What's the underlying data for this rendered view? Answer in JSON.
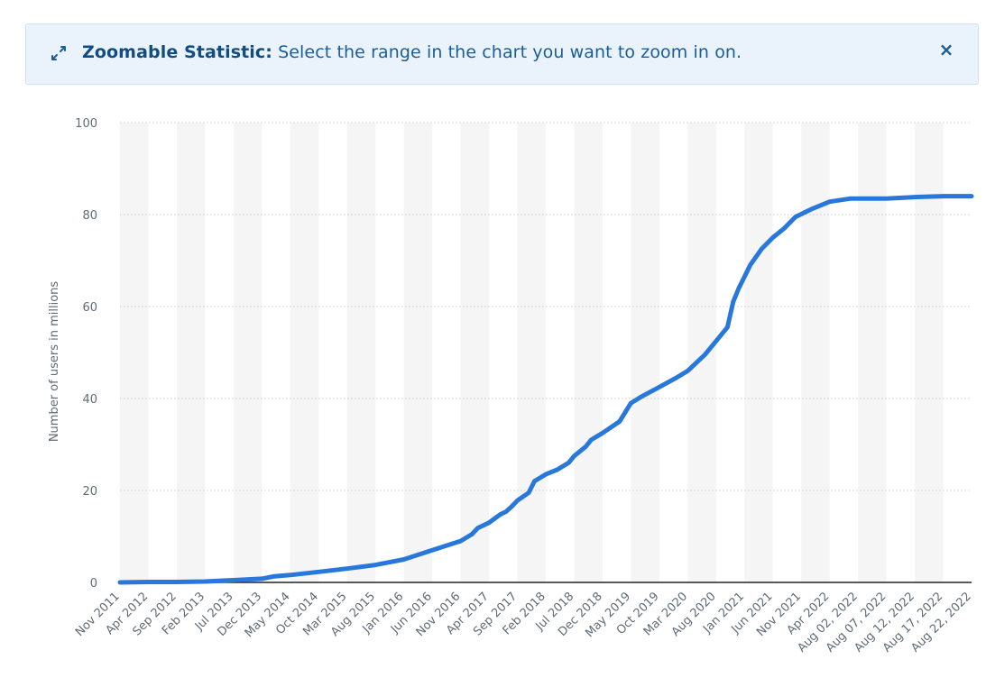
{
  "banner": {
    "title": "Zoomable Statistic:",
    "text": " Select the range in the chart you want to zoom in on.",
    "close_label": "×",
    "expand_icon": "expand-arrows-icon",
    "close_icon": "close-icon"
  },
  "colors": {
    "line": "#2878dc",
    "band": "#f5f5f5",
    "grid": "#c8c8c8",
    "axis": "#222222",
    "banner_bg": "#eaf3fb",
    "banner_text": "#1a5d99"
  },
  "chart_data": {
    "type": "line",
    "title": "",
    "xlabel": "",
    "ylabel": "Number of users in millions",
    "ylim": [
      0,
      100
    ],
    "yticks": [
      0,
      20,
      40,
      60,
      80,
      100
    ],
    "grid": true,
    "legend": "none",
    "x_labels": [
      "Nov 2011",
      "Apr 2012",
      "Sep 2012",
      "Feb 2013",
      "Jul 2013",
      "Dec 2013",
      "May 2014",
      "Oct 2014",
      "Mar 2015",
      "Aug 2015",
      "Jan 2016",
      "Jun 2016",
      "Nov 2016",
      "Apr 2017",
      "Sep 2017",
      "Feb 2018",
      "Jul 2018",
      "Dec 2018",
      "May 2019",
      "Oct 2019",
      "Mar 2020",
      "Aug 2020",
      "Jan 2021",
      "Jun 2021",
      "Nov 2021",
      "Apr 2022",
      "Aug 02, 2022",
      "Aug 07, 2022",
      "Aug 12, 2022",
      "Aug 17, 2022",
      "Aug 22, 2022"
    ],
    "series": [
      {
        "values": [
          {
            "x": "Nov 2011",
            "y": 0.0
          },
          {
            "x": "Apr 2012",
            "y": 0.1
          },
          {
            "x": "Sep 2012",
            "y": 0.1
          },
          {
            "x": "Feb 2013",
            "y": 0.2
          },
          {
            "x": "Jul 2013",
            "y": 0.5
          },
          {
            "x": "Dec 2013",
            "y": 0.8
          },
          {
            "x": "Feb 2014",
            "y": 1.3
          },
          {
            "x": "May 2014",
            "y": 1.6
          },
          {
            "x": "Oct 2014",
            "y": 2.3
          },
          {
            "x": "Mar 2015",
            "y": 3.0
          },
          {
            "x": "Aug 2015",
            "y": 3.8
          },
          {
            "x": "Jan 2016",
            "y": 5.0
          },
          {
            "x": "Jun 2016",
            "y": 7.0
          },
          {
            "x": "Nov 2016",
            "y": 9.0
          },
          {
            "x": "Jan 2017",
            "y": 10.5
          },
          {
            "x": "Feb 2017",
            "y": 11.8
          },
          {
            "x": "Apr 2017",
            "y": 13.0
          },
          {
            "x": "Jun 2017",
            "y": 14.8
          },
          {
            "x": "Jul 2017",
            "y": 15.4
          },
          {
            "x": "Aug 2017",
            "y": 16.5
          },
          {
            "x": "Sep 2017",
            "y": 17.8
          },
          {
            "x": "Nov 2017",
            "y": 19.5
          },
          {
            "x": "Dec 2017",
            "y": 22.0
          },
          {
            "x": "Feb 2018",
            "y": 23.5
          },
          {
            "x": "Apr 2018",
            "y": 24.5
          },
          {
            "x": "Jun 2018",
            "y": 26.0
          },
          {
            "x": "Jul 2018",
            "y": 27.5
          },
          {
            "x": "Sep 2018",
            "y": 29.5
          },
          {
            "x": "Oct 2018",
            "y": 31.0
          },
          {
            "x": "Dec 2018",
            "y": 32.5
          },
          {
            "x": "Mar 2019",
            "y": 35.0
          },
          {
            "x": "May 2019",
            "y": 39.0
          },
          {
            "x": "Jul 2019",
            "y": 40.5
          },
          {
            "x": "Oct 2019",
            "y": 42.5
          },
          {
            "x": "Jan 2020",
            "y": 44.5
          },
          {
            "x": "Mar 2020",
            "y": 46.0
          },
          {
            "x": "Jun 2020",
            "y": 49.5
          },
          {
            "x": "Aug 2020",
            "y": 52.5
          },
          {
            "x": "Oct 2020",
            "y": 55.5
          },
          {
            "x": "Nov 2020",
            "y": 61.0
          },
          {
            "x": "Dec 2020",
            "y": 64.0
          },
          {
            "x": "Feb 2021",
            "y": 69.0
          },
          {
            "x": "Apr 2021",
            "y": 72.5
          },
          {
            "x": "Jun 2021",
            "y": 75.0
          },
          {
            "x": "Aug 2021",
            "y": 77.0
          },
          {
            "x": "Oct 2021",
            "y": 79.5
          },
          {
            "x": "Jan 2022",
            "y": 81.3
          },
          {
            "x": "Apr 2022",
            "y": 82.8
          },
          {
            "x": "Jul 2022",
            "y": 83.5
          },
          {
            "x": "Aug 02, 2022",
            "y": 83.5
          },
          {
            "x": "Aug 07, 2022",
            "y": 83.5
          },
          {
            "x": "Aug 12, 2022",
            "y": 83.8
          },
          {
            "x": "Aug 17, 2022",
            "y": 84.0
          },
          {
            "x": "Aug 22, 2022",
            "y": 84.0
          }
        ]
      }
    ]
  }
}
